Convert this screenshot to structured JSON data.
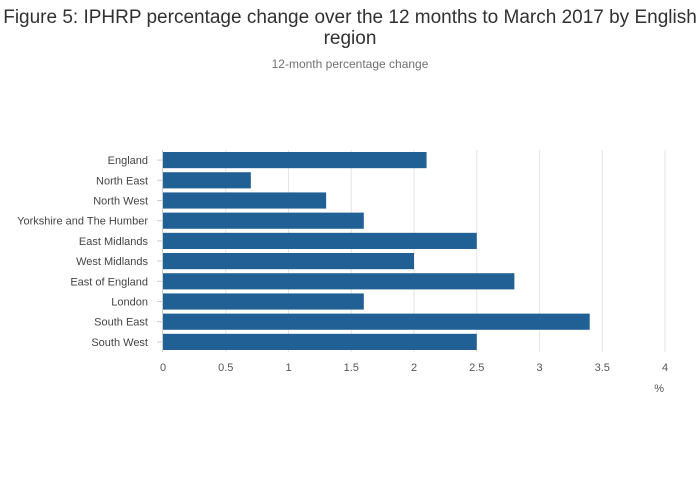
{
  "chart_data": {
    "type": "bar",
    "orientation": "horizontal",
    "title": "Figure 5: IPHRP percentage change over the 12 months to March 2017 by English region",
    "subtitle": "12-month percentage change",
    "xlabel": "%",
    "ylabel": "",
    "categories": [
      "England",
      "North East",
      "North West",
      "Yorkshire and The Humber",
      "East Midlands",
      "West Midlands",
      "East of England",
      "London",
      "South East",
      "South West"
    ],
    "values": [
      2.1,
      0.7,
      1.3,
      1.6,
      2.5,
      2.0,
      2.8,
      1.6,
      3.4,
      2.5
    ],
    "xlim": [
      0,
      4
    ],
    "xticks": [
      0,
      0.5,
      1,
      1.5,
      2,
      2.5,
      3,
      3.5,
      4
    ],
    "xtick_labels": [
      "0",
      "0.5",
      "1",
      "1.5",
      "2",
      "2.5",
      "3",
      "3.5",
      "4"
    ],
    "grid": "vertical",
    "legend": "none",
    "bar_color": "#206095",
    "grid_color": "#e4e4e4"
  }
}
